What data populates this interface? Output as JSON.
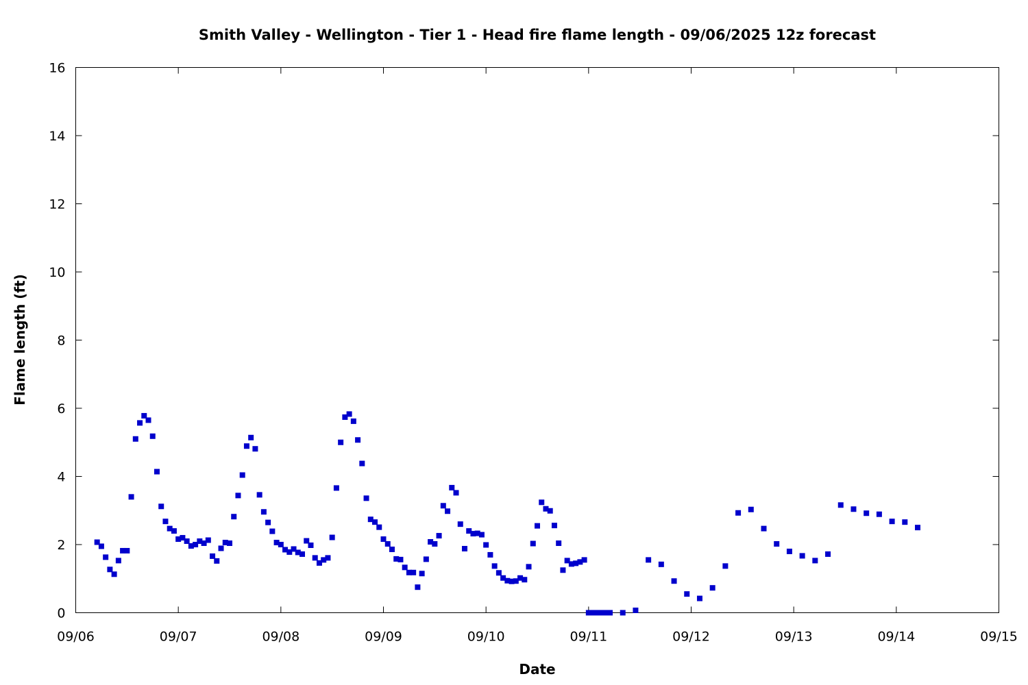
{
  "chart_data": {
    "type": "scatter",
    "title": "Smith Valley - Wellington - Tier 1 - Head fire flame length - 09/06/2025 12z forecast",
    "xlabel": "Date",
    "ylabel": "Flame length (ft)",
    "x_tick_labels": [
      "09/06",
      "09/07",
      "09/08",
      "09/09",
      "09/10",
      "09/11",
      "09/12",
      "09/13",
      "09/14",
      "09/15"
    ],
    "y_ticks": [
      0,
      2,
      4,
      6,
      8,
      10,
      12,
      14,
      16
    ],
    "xlim": [
      "2025-09-06 00:00",
      "2025-09-15 00:00"
    ],
    "ylim": [
      0,
      16
    ],
    "grid": false,
    "marker_color": "#0000cc",
    "series": [
      {
        "x": [
          "2025-09-06 05:00",
          "2025-09-06 06:00",
          "2025-09-06 07:00",
          "2025-09-06 08:00",
          "2025-09-06 09:00",
          "2025-09-06 10:00",
          "2025-09-06 11:00",
          "2025-09-06 12:00",
          "2025-09-06 13:00",
          "2025-09-06 14:00",
          "2025-09-06 15:00",
          "2025-09-06 16:00",
          "2025-09-06 17:00",
          "2025-09-06 18:00",
          "2025-09-06 19:00",
          "2025-09-06 20:00",
          "2025-09-06 21:00",
          "2025-09-06 22:00",
          "2025-09-06 23:00",
          "2025-09-07 00:00",
          "2025-09-07 01:00",
          "2025-09-07 02:00",
          "2025-09-07 03:00",
          "2025-09-07 04:00",
          "2025-09-07 05:00",
          "2025-09-07 06:00",
          "2025-09-07 07:00",
          "2025-09-07 08:00",
          "2025-09-07 09:00",
          "2025-09-07 10:00",
          "2025-09-07 11:00",
          "2025-09-07 12:00",
          "2025-09-07 13:00",
          "2025-09-07 14:00",
          "2025-09-07 15:00",
          "2025-09-07 16:00",
          "2025-09-07 17:00",
          "2025-09-07 18:00",
          "2025-09-07 19:00",
          "2025-09-07 20:00",
          "2025-09-07 21:00",
          "2025-09-07 22:00",
          "2025-09-07 23:00",
          "2025-09-08 00:00",
          "2025-09-08 01:00",
          "2025-09-08 02:00",
          "2025-09-08 03:00",
          "2025-09-08 04:00",
          "2025-09-08 05:00",
          "2025-09-08 06:00",
          "2025-09-08 07:00",
          "2025-09-08 08:00",
          "2025-09-08 09:00",
          "2025-09-08 10:00",
          "2025-09-08 11:00",
          "2025-09-08 12:00",
          "2025-09-08 13:00",
          "2025-09-08 14:00",
          "2025-09-08 15:00",
          "2025-09-08 16:00",
          "2025-09-08 17:00",
          "2025-09-08 18:00",
          "2025-09-08 19:00",
          "2025-09-08 20:00",
          "2025-09-08 21:00",
          "2025-09-08 22:00",
          "2025-09-08 23:00",
          "2025-09-09 00:00",
          "2025-09-09 01:00",
          "2025-09-09 02:00",
          "2025-09-09 03:00",
          "2025-09-09 04:00",
          "2025-09-09 05:00",
          "2025-09-09 06:00",
          "2025-09-09 07:00",
          "2025-09-09 08:00",
          "2025-09-09 09:00",
          "2025-09-09 10:00",
          "2025-09-09 11:00",
          "2025-09-09 12:00",
          "2025-09-09 13:00",
          "2025-09-09 14:00",
          "2025-09-09 15:00",
          "2025-09-09 16:00",
          "2025-09-09 17:00",
          "2025-09-09 18:00",
          "2025-09-09 19:00",
          "2025-09-09 20:00",
          "2025-09-09 21:00",
          "2025-09-09 22:00",
          "2025-09-09 23:00",
          "2025-09-10 00:00",
          "2025-09-10 01:00",
          "2025-09-10 02:00",
          "2025-09-10 03:00",
          "2025-09-10 04:00",
          "2025-09-10 05:00",
          "2025-09-10 06:00",
          "2025-09-10 07:00",
          "2025-09-10 08:00",
          "2025-09-10 09:00",
          "2025-09-10 10:00",
          "2025-09-10 11:00",
          "2025-09-10 12:00",
          "2025-09-10 13:00",
          "2025-09-10 14:00",
          "2025-09-10 15:00",
          "2025-09-10 16:00",
          "2025-09-10 17:00",
          "2025-09-10 18:00",
          "2025-09-10 19:00",
          "2025-09-10 20:00",
          "2025-09-10 21:00",
          "2025-09-10 22:00",
          "2025-09-10 23:00",
          "2025-09-11 00:00",
          "2025-09-11 01:00",
          "2025-09-11 02:00",
          "2025-09-11 03:00",
          "2025-09-11 04:00",
          "2025-09-11 05:00",
          "2025-09-11 08:00",
          "2025-09-11 11:00",
          "2025-09-11 14:00",
          "2025-09-11 17:00",
          "2025-09-11 20:00",
          "2025-09-11 23:00",
          "2025-09-12 02:00",
          "2025-09-12 05:00",
          "2025-09-12 08:00",
          "2025-09-12 11:00",
          "2025-09-12 14:00",
          "2025-09-12 17:00",
          "2025-09-12 20:00",
          "2025-09-12 23:00",
          "2025-09-13 02:00",
          "2025-09-13 05:00",
          "2025-09-13 08:00",
          "2025-09-13 11:00",
          "2025-09-13 14:00",
          "2025-09-13 17:00",
          "2025-09-13 20:00",
          "2025-09-13 23:00",
          "2025-09-14 02:00",
          "2025-09-14 05:00"
        ],
        "y": [
          2.07,
          1.95,
          1.63,
          1.27,
          1.13,
          1.53,
          1.82,
          1.82,
          3.4,
          5.1,
          5.57,
          5.78,
          5.65,
          5.18,
          4.14,
          3.12,
          2.68,
          2.47,
          2.4,
          2.16,
          2.2,
          2.1,
          1.96,
          2.0,
          2.1,
          2.04,
          2.13,
          1.66,
          1.52,
          1.89,
          2.06,
          2.04,
          2.82,
          3.44,
          4.04,
          4.89,
          5.14,
          4.81,
          3.46,
          2.96,
          2.65,
          2.39,
          2.06,
          2.0,
          1.85,
          1.78,
          1.87,
          1.77,
          1.72,
          2.11,
          1.98,
          1.61,
          1.46,
          1.55,
          1.61,
          2.21,
          3.66,
          5.0,
          5.74,
          5.83,
          5.62,
          5.07,
          4.38,
          3.36,
          2.74,
          2.66,
          2.51,
          2.16,
          2.02,
          1.86,
          1.58,
          1.56,
          1.33,
          1.18,
          1.18,
          0.75,
          1.15,
          1.57,
          2.08,
          2.02,
          2.26,
          3.14,
          2.98,
          3.67,
          3.52,
          2.6,
          1.88,
          2.4,
          2.32,
          2.33,
          2.29,
          1.99,
          1.7,
          1.37,
          1.17,
          1.02,
          0.94,
          0.92,
          0.93,
          1.02,
          0.97,
          1.35,
          2.03,
          2.55,
          3.24,
          3.05,
          2.99,
          2.56,
          2.04,
          1.25,
          1.53,
          1.43,
          1.45,
          1.49,
          1.55,
          0.0,
          0.0,
          0.0,
          0.0,
          0.0,
          0.0,
          0.0,
          0.07,
          1.55,
          1.42,
          0.93,
          0.55,
          0.42,
          0.73,
          1.37,
          2.93,
          3.03,
          2.47,
          2.02,
          1.8,
          1.67,
          1.53,
          1.72,
          3.16,
          3.04,
          2.92,
          2.89,
          2.68,
          2.66,
          2.5
        ]
      }
    ]
  }
}
